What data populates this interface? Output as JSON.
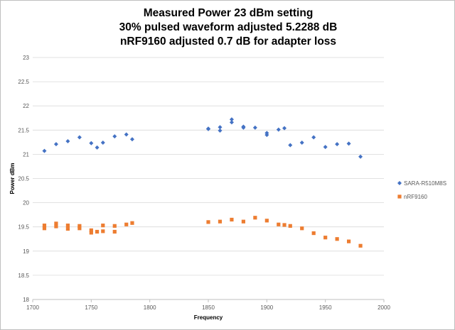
{
  "chart_data": {
    "type": "scatter",
    "title": [
      "Measured Power 23 dBm setting",
      "30% pulsed waveform adjusted 5.2288 dB",
      "nRF9160 adjusted 0.7 dB for adapter loss"
    ],
    "xlabel": "Frequency",
    "ylabel": "Power dBm",
    "xlim": [
      1700,
      2000
    ],
    "ylim": [
      18,
      23
    ],
    "xticks": [
      1700,
      1750,
      1800,
      1850,
      1900,
      1950,
      2000
    ],
    "yticks": [
      18,
      18.5,
      19,
      19.5,
      20,
      20.5,
      21,
      21.5,
      22,
      22.5,
      23
    ],
    "ytick_labels": [
      "18",
      "18.5",
      "19",
      "19.5",
      "20",
      "20.5",
      "21",
      "21.5",
      "22",
      "22.5",
      "23"
    ],
    "grid": "horizontal",
    "legend_position": "right",
    "series": [
      {
        "name": "SARA-R510M8S",
        "marker": "diamond",
        "color": "#4472C4",
        "x": [
          1710,
          1720,
          1730,
          1740,
          1750,
          1755,
          1760,
          1770,
          1780,
          1785,
          1850,
          1850,
          1860,
          1860,
          1870,
          1870,
          1880,
          1880,
          1890,
          1900,
          1900,
          1910,
          1915,
          1920,
          1930,
          1940,
          1950,
          1960,
          1970,
          1980
        ],
        "y": [
          21.07,
          21.21,
          21.27,
          21.35,
          21.23,
          21.14,
          21.24,
          21.37,
          21.41,
          21.31,
          21.53,
          21.52,
          21.56,
          21.49,
          21.72,
          21.66,
          21.57,
          21.55,
          21.55,
          21.44,
          21.4,
          21.51,
          21.54,
          21.19,
          21.24,
          21.35,
          21.15,
          21.21,
          21.22,
          20.95
        ]
      },
      {
        "name": "nRF9160",
        "marker": "square",
        "color": "#ED7D31",
        "x": [
          1710,
          1710,
          1720,
          1720,
          1730,
          1730,
          1740,
          1740,
          1750,
          1750,
          1755,
          1760,
          1760,
          1770,
          1770,
          1780,
          1785,
          1850,
          1860,
          1870,
          1880,
          1890,
          1900,
          1910,
          1915,
          1920,
          1930,
          1940,
          1950,
          1960,
          1970,
          1980
        ],
        "y": [
          19.53,
          19.47,
          19.57,
          19.51,
          19.53,
          19.46,
          19.52,
          19.47,
          19.43,
          19.38,
          19.4,
          19.53,
          19.41,
          19.52,
          19.4,
          19.55,
          19.58,
          19.6,
          19.61,
          19.65,
          19.61,
          19.69,
          19.63,
          19.55,
          19.54,
          19.52,
          19.47,
          19.37,
          19.28,
          19.25,
          19.2,
          19.11
        ]
      }
    ]
  }
}
